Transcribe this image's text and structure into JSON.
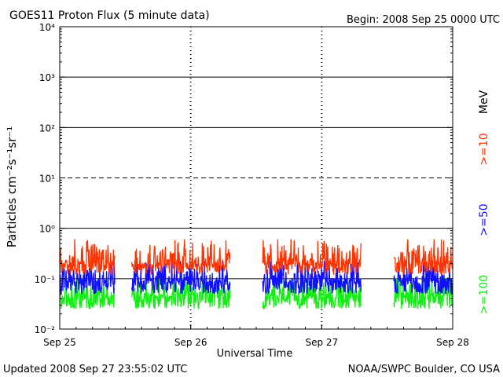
{
  "header": {
    "title": "GOES11 Proton Flux (5 minute data)",
    "begin": "Begin: 2008 Sep 25 0000 UTC"
  },
  "footer": {
    "updated": "Updated 2008 Sep 27 23:55:02 UTC",
    "credit": "NOAA/SWPC Boulder, CO USA"
  },
  "colors": {
    "ge10": "#ff3300",
    "ge50": "#1010ff",
    "ge100": "#11ee11",
    "frame": "#000000"
  },
  "chart_data": {
    "type": "line",
    "xlabel": "Universal Time",
    "ylabel": "Particles cm⁻²s⁻¹sr⁻¹",
    "scale": "log",
    "ylim": [
      0.01,
      10000
    ],
    "x_range_days": [
      0,
      3
    ],
    "x_ticks": [
      {
        "label": "Sep 25",
        "day": 0
      },
      {
        "label": "Sep 26",
        "day": 1
      },
      {
        "label": "Sep 27",
        "day": 2
      },
      {
        "label": "Sep 28",
        "day": 3
      }
    ],
    "y_ticks": [
      {
        "label": "10⁻²",
        "value": 0.01
      },
      {
        "label": "10⁻¹",
        "value": 0.1
      },
      {
        "label": "10⁰",
        "value": 1
      },
      {
        "label": "10¹",
        "value": 10
      },
      {
        "label": "10²",
        "value": 100
      },
      {
        "label": "10³",
        "value": 1000
      },
      {
        "label": "10⁴",
        "value": 10000
      }
    ],
    "hlines": [
      {
        "value": 0.1,
        "style": "solid"
      },
      {
        "value": 1,
        "style": "solid"
      },
      {
        "value": 10,
        "style": "dashed"
      },
      {
        "value": 100,
        "style": "solid"
      },
      {
        "value": 1000,
        "style": "solid"
      }
    ],
    "units_label": "MeV",
    "data_segments_days": [
      [
        0,
        0.42
      ],
      [
        0.55,
        1.3
      ],
      [
        1.55,
        2.3
      ],
      [
        2.55,
        3
      ]
    ],
    "series": [
      {
        "name": ">=10",
        "color_key": "ge10",
        "typical": 0.2,
        "low": 0.12,
        "high": 0.62
      },
      {
        "name": ">=50",
        "color_key": "ge50",
        "typical": 0.09,
        "low": 0.05,
        "high": 0.23
      },
      {
        "name": ">=100",
        "color_key": "ge100",
        "typical": 0.045,
        "low": 0.025,
        "high": 0.11
      }
    ]
  }
}
